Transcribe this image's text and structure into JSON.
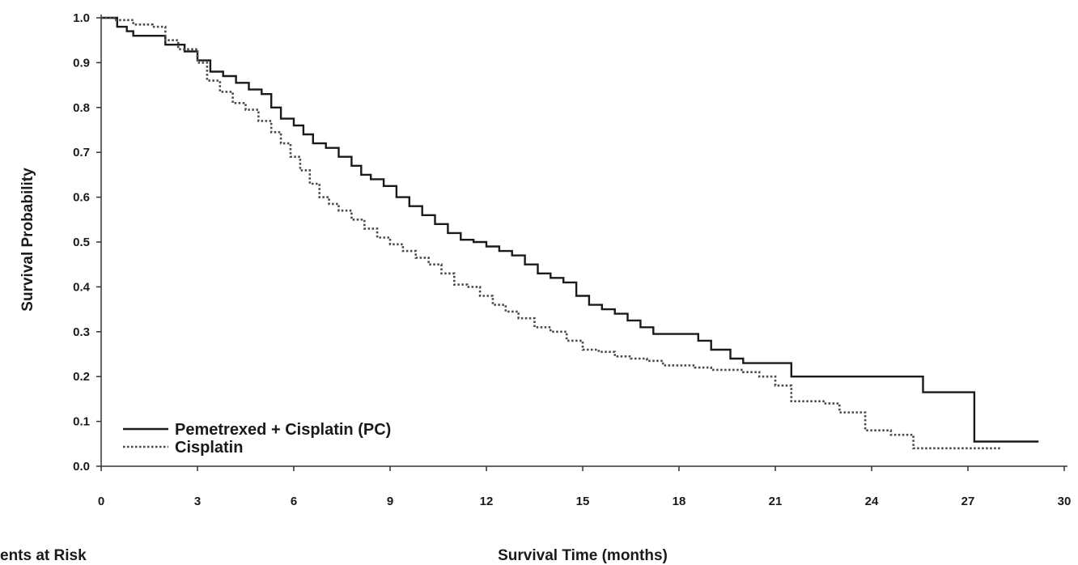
{
  "chart_data": {
    "type": "line",
    "subtype": "kaplan-meier",
    "title": "",
    "xlabel": "Survival Time (months)",
    "ylabel": "Survival Probability",
    "xlim": [
      0,
      30
    ],
    "ylim": [
      0,
      1.0
    ],
    "xticks": [
      "0",
      "3",
      "6",
      "9",
      "12",
      "15",
      "18",
      "21",
      "24",
      "27",
      "30"
    ],
    "yticks": [
      "0.0",
      "0.1",
      "0.2",
      "0.3",
      "0.4",
      "0.5",
      "0.6",
      "0.7",
      "0.8",
      "0.9",
      "1.0"
    ],
    "grid": false,
    "legend_position": "bottom-left",
    "series": [
      {
        "name": "Pemetrexed + Cisplatin (PC)",
        "style": "solid",
        "color": "#1a1a1a",
        "x": [
          0,
          0.5,
          0.8,
          1.0,
          2.0,
          2.6,
          3.0,
          3.4,
          3.8,
          4.2,
          4.6,
          5.0,
          5.3,
          5.6,
          6.0,
          6.3,
          6.6,
          7.0,
          7.4,
          7.8,
          8.1,
          8.4,
          8.8,
          9.2,
          9.6,
          10.0,
          10.4,
          10.8,
          11.2,
          11.6,
          12.0,
          12.4,
          12.8,
          13.2,
          13.6,
          14.0,
          14.4,
          14.8,
          15.2,
          15.6,
          16.0,
          16.4,
          16.8,
          17.2,
          18.0,
          18.6,
          19.0,
          19.6,
          20.0,
          21.0,
          21.5,
          25.0,
          25.6,
          27.0,
          27.2,
          29.2
        ],
        "y": [
          1.0,
          0.98,
          0.97,
          0.96,
          0.94,
          0.925,
          0.905,
          0.88,
          0.87,
          0.855,
          0.84,
          0.83,
          0.8,
          0.775,
          0.76,
          0.74,
          0.72,
          0.71,
          0.69,
          0.67,
          0.65,
          0.64,
          0.625,
          0.6,
          0.58,
          0.56,
          0.54,
          0.52,
          0.505,
          0.5,
          0.49,
          0.48,
          0.47,
          0.45,
          0.43,
          0.42,
          0.41,
          0.38,
          0.36,
          0.35,
          0.34,
          0.325,
          0.31,
          0.295,
          0.295,
          0.28,
          0.26,
          0.24,
          0.23,
          0.23,
          0.2,
          0.2,
          0.165,
          0.165,
          0.055,
          0.055
        ]
      },
      {
        "name": "Cisplatin",
        "style": "dotted",
        "color": "#4a4a4a",
        "x": [
          0,
          0.4,
          1.0,
          1.6,
          2.0,
          2.4,
          3.0,
          3.3,
          3.7,
          4.1,
          4.5,
          4.9,
          5.3,
          5.6,
          5.9,
          6.2,
          6.5,
          6.8,
          7.1,
          7.4,
          7.8,
          8.2,
          8.6,
          9.0,
          9.4,
          9.8,
          10.2,
          10.6,
          11.0,
          11.4,
          11.8,
          12.2,
          12.6,
          13.0,
          13.5,
          14.0,
          14.5,
          15.0,
          15.5,
          16.0,
          16.5,
          17.0,
          17.5,
          18.5,
          19.0,
          20.0,
          20.5,
          21.0,
          21.5,
          22.5,
          23.0,
          23.8,
          24.6,
          25.3,
          26.0,
          27.0,
          28.0
        ],
        "y": [
          1.0,
          0.995,
          0.985,
          0.98,
          0.95,
          0.93,
          0.9,
          0.86,
          0.835,
          0.81,
          0.795,
          0.77,
          0.745,
          0.72,
          0.69,
          0.66,
          0.63,
          0.6,
          0.585,
          0.57,
          0.55,
          0.53,
          0.51,
          0.495,
          0.48,
          0.465,
          0.45,
          0.43,
          0.405,
          0.4,
          0.38,
          0.36,
          0.345,
          0.33,
          0.31,
          0.3,
          0.28,
          0.26,
          0.255,
          0.245,
          0.24,
          0.235,
          0.225,
          0.22,
          0.215,
          0.21,
          0.2,
          0.18,
          0.145,
          0.14,
          0.12,
          0.08,
          0.07,
          0.04,
          0.04,
          0.04,
          0.04
        ]
      }
    ],
    "risk_table_label": "ents at Risk"
  }
}
